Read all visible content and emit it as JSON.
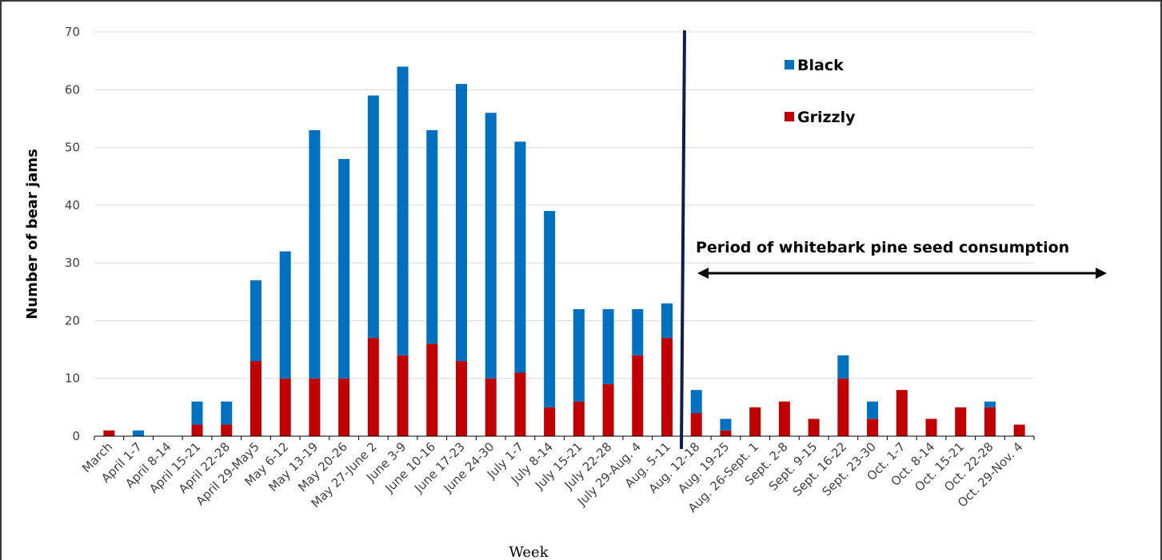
{
  "chart_data": {
    "type": "bar",
    "stacked": true,
    "title": "",
    "xlabel": "Week",
    "ylabel": "Number of bear jams",
    "ylim": [
      0,
      70
    ],
    "yticks": [
      0,
      10,
      20,
      30,
      40,
      50,
      60,
      70
    ],
    "grid": true,
    "legend_position": "top-right",
    "categories": [
      "March",
      "April 1-7",
      "April 8-14",
      "April 15-21",
      "April 22-28",
      "April 29-May5",
      "May 6-12",
      "May 13-19",
      "May 20-26",
      "May 27-June 2",
      "June 3-9",
      "June 10-16",
      "June 17-23",
      "June 24-30",
      "July 1-7",
      "July 8-14",
      "July 15-21",
      "July 22-28",
      "July 29-Aug. 4",
      "Aug. 5-11",
      "Aug. 12-18",
      "Aug. 19-25",
      "Aug. 26-Sept. 1",
      "Sept. 2-8",
      "Sept. 9-15",
      "Sept. 16-22",
      "Sept. 23-30",
      "Oct. 1-7",
      "Oct. 8-14",
      "Oct. 15-21",
      "Oct. 22-28",
      "Oct. 29-Nov. 4"
    ],
    "series": [
      {
        "name": "Grizzly",
        "color": "#c00000",
        "values": [
          1,
          0,
          0,
          2,
          2,
          13,
          10,
          10,
          10,
          17,
          14,
          16,
          13,
          10,
          11,
          5,
          6,
          9,
          14,
          17,
          4,
          1,
          5,
          6,
          3,
          10,
          3,
          8,
          3,
          5,
          5,
          2
        ]
      },
      {
        "name": "Black",
        "color": "#0070c0",
        "values": [
          0,
          1,
          0,
          4,
          4,
          14,
          22,
          43,
          38,
          42,
          50,
          37,
          48,
          46,
          40,
          34,
          16,
          13,
          8,
          6,
          4,
          2,
          0,
          0,
          0,
          4,
          3,
          0,
          0,
          0,
          1,
          0
        ]
      }
    ],
    "legend_order": [
      "Black",
      "Grizzly"
    ],
    "annotations": {
      "period_label": "Period of whitebark pine seed consumption",
      "divider_between": [
        "Aug. 5-11",
        "Aug. 12-18"
      ],
      "divider_color": "#0d1f4f"
    }
  }
}
